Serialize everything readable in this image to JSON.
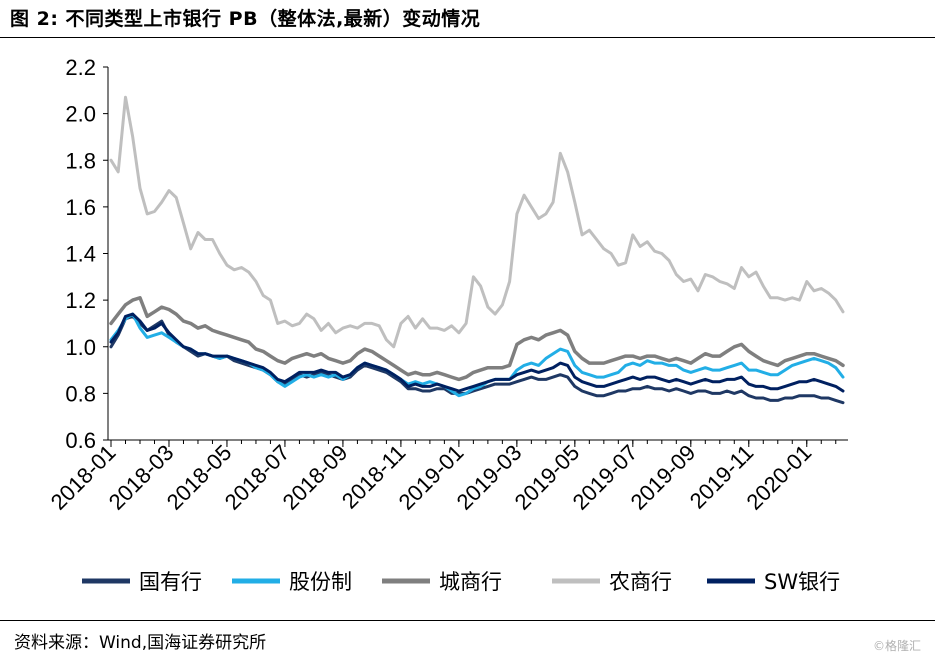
{
  "header": {
    "title": "图 2:  不同类型上市银行 PB（整体法,最新）变动情况"
  },
  "footer": {
    "source": "资料来源：Wind,国海证券研究所",
    "watermark": "©格隆汇"
  },
  "chart_data": {
    "type": "line",
    "title": "图 2:  不同类型上市银行 PB（整体法,最新）变动情况",
    "xlabel": "",
    "ylabel": "",
    "ylim": [
      0.6,
      2.2
    ],
    "yticks": [
      "0.6",
      "0.8",
      "1.0",
      "1.2",
      "1.4",
      "1.6",
      "1.8",
      "2.0",
      "2.2"
    ],
    "xticks": [
      "2018-01",
      "2018-03",
      "2018-05",
      "2018-07",
      "2018-09",
      "2018-11",
      "2019-01",
      "2019-03",
      "2019-05",
      "2019-07",
      "2019-09",
      "2019-11",
      "2020-01"
    ],
    "grid": false,
    "legend_position": "bottom",
    "x": [
      "2018-01",
      "2018-01",
      "2018-01",
      "2018-01",
      "2018-02",
      "2018-02",
      "2018-02",
      "2018-02",
      "2018-03",
      "2018-03",
      "2018-03",
      "2018-03",
      "2018-04",
      "2018-04",
      "2018-04",
      "2018-04",
      "2018-05",
      "2018-05",
      "2018-05",
      "2018-05",
      "2018-06",
      "2018-06",
      "2018-06",
      "2018-06",
      "2018-07",
      "2018-07",
      "2018-07",
      "2018-07",
      "2018-08",
      "2018-08",
      "2018-08",
      "2018-08",
      "2018-09",
      "2018-09",
      "2018-09",
      "2018-09",
      "2018-10",
      "2018-10",
      "2018-10",
      "2018-10",
      "2018-11",
      "2018-11",
      "2018-11",
      "2018-11",
      "2018-12",
      "2018-12",
      "2018-12",
      "2018-12",
      "2019-01",
      "2019-01",
      "2019-01",
      "2019-01",
      "2019-02",
      "2019-02",
      "2019-02",
      "2019-02",
      "2019-03",
      "2019-03",
      "2019-03",
      "2019-03",
      "2019-04",
      "2019-04",
      "2019-04",
      "2019-04",
      "2019-05",
      "2019-05",
      "2019-05",
      "2019-05",
      "2019-06",
      "2019-06",
      "2019-06",
      "2019-06",
      "2019-07",
      "2019-07",
      "2019-07",
      "2019-07",
      "2019-08",
      "2019-08",
      "2019-08",
      "2019-08",
      "2019-09",
      "2019-09",
      "2019-09",
      "2019-09",
      "2019-10",
      "2019-10",
      "2019-10",
      "2019-10",
      "2019-11",
      "2019-11",
      "2019-11",
      "2019-11",
      "2019-12",
      "2019-12",
      "2019-12",
      "2019-12",
      "2020-01",
      "2020-01",
      "2020-01",
      "2020-01",
      "2020-02",
      "2020-02"
    ],
    "series": [
      {
        "name": "国有行",
        "color": "#1f3864",
        "values": [
          1.0,
          1.05,
          1.12,
          1.13,
          1.1,
          1.07,
          1.09,
          1.11,
          1.05,
          1.02,
          1.0,
          0.98,
          0.96,
          0.97,
          0.96,
          0.95,
          0.96,
          0.94,
          0.93,
          0.92,
          0.91,
          0.9,
          0.88,
          0.85,
          0.84,
          0.86,
          0.88,
          0.87,
          0.88,
          0.89,
          0.88,
          0.87,
          0.86,
          0.87,
          0.9,
          0.92,
          0.91,
          0.9,
          0.89,
          0.87,
          0.85,
          0.82,
          0.82,
          0.81,
          0.81,
          0.82,
          0.82,
          0.8,
          0.8,
          0.8,
          0.81,
          0.82,
          0.83,
          0.84,
          0.84,
          0.84,
          0.85,
          0.86,
          0.87,
          0.86,
          0.86,
          0.87,
          0.88,
          0.87,
          0.83,
          0.81,
          0.8,
          0.79,
          0.79,
          0.8,
          0.81,
          0.81,
          0.82,
          0.82,
          0.83,
          0.82,
          0.82,
          0.81,
          0.82,
          0.81,
          0.8,
          0.81,
          0.81,
          0.8,
          0.8,
          0.81,
          0.8,
          0.81,
          0.79,
          0.78,
          0.78,
          0.77,
          0.77,
          0.78,
          0.78,
          0.79,
          0.79,
          0.79,
          0.78,
          0.78,
          0.77,
          0.76
        ]
      },
      {
        "name": "股份制",
        "color": "#22aee6",
        "values": [
          1.03,
          1.07,
          1.12,
          1.14,
          1.08,
          1.04,
          1.05,
          1.06,
          1.04,
          1.02,
          1.0,
          0.99,
          0.97,
          0.97,
          0.96,
          0.95,
          0.96,
          0.95,
          0.94,
          0.93,
          0.91,
          0.9,
          0.88,
          0.85,
          0.83,
          0.85,
          0.87,
          0.88,
          0.87,
          0.88,
          0.87,
          0.88,
          0.86,
          0.88,
          0.91,
          0.93,
          0.92,
          0.91,
          0.9,
          0.88,
          0.86,
          0.84,
          0.85,
          0.84,
          0.85,
          0.84,
          0.83,
          0.81,
          0.79,
          0.8,
          0.82,
          0.83,
          0.85,
          0.86,
          0.86,
          0.86,
          0.9,
          0.92,
          0.93,
          0.92,
          0.95,
          0.97,
          0.99,
          0.98,
          0.92,
          0.89,
          0.88,
          0.87,
          0.87,
          0.88,
          0.89,
          0.92,
          0.93,
          0.92,
          0.94,
          0.93,
          0.93,
          0.92,
          0.92,
          0.9,
          0.89,
          0.9,
          0.91,
          0.9,
          0.9,
          0.91,
          0.92,
          0.93,
          0.9,
          0.9,
          0.89,
          0.88,
          0.88,
          0.9,
          0.92,
          0.93,
          0.94,
          0.95,
          0.94,
          0.93,
          0.91,
          0.87
        ]
      },
      {
        "name": "城商行",
        "color": "#7f7f7f",
        "values": [
          1.1,
          1.14,
          1.18,
          1.2,
          1.21,
          1.13,
          1.15,
          1.17,
          1.16,
          1.14,
          1.11,
          1.1,
          1.08,
          1.09,
          1.07,
          1.06,
          1.05,
          1.04,
          1.03,
          1.02,
          0.99,
          0.98,
          0.96,
          0.94,
          0.93,
          0.95,
          0.96,
          0.97,
          0.96,
          0.97,
          0.95,
          0.94,
          0.93,
          0.94,
          0.97,
          0.99,
          0.98,
          0.96,
          0.94,
          0.92,
          0.9,
          0.88,
          0.89,
          0.88,
          0.88,
          0.89,
          0.88,
          0.87,
          0.86,
          0.87,
          0.89,
          0.9,
          0.91,
          0.91,
          0.91,
          0.92,
          1.01,
          1.03,
          1.04,
          1.03,
          1.05,
          1.06,
          1.07,
          1.05,
          0.98,
          0.95,
          0.93,
          0.93,
          0.93,
          0.94,
          0.95,
          0.96,
          0.96,
          0.95,
          0.96,
          0.96,
          0.95,
          0.94,
          0.95,
          0.94,
          0.93,
          0.95,
          0.97,
          0.96,
          0.96,
          0.98,
          1.0,
          1.01,
          0.98,
          0.96,
          0.94,
          0.93,
          0.92,
          0.94,
          0.95,
          0.96,
          0.97,
          0.97,
          0.96,
          0.95,
          0.94,
          0.92
        ]
      },
      {
        "name": "农商行",
        "color": "#bfbfbf",
        "values": [
          1.8,
          1.75,
          2.07,
          1.9,
          1.68,
          1.57,
          1.58,
          1.62,
          1.67,
          1.64,
          1.53,
          1.42,
          1.49,
          1.46,
          1.46,
          1.4,
          1.35,
          1.33,
          1.34,
          1.32,
          1.28,
          1.22,
          1.2,
          1.1,
          1.11,
          1.09,
          1.1,
          1.14,
          1.12,
          1.07,
          1.1,
          1.06,
          1.08,
          1.09,
          1.08,
          1.1,
          1.1,
          1.09,
          1.03,
          1.0,
          1.1,
          1.13,
          1.08,
          1.12,
          1.08,
          1.08,
          1.07,
          1.09,
          1.06,
          1.1,
          1.3,
          1.26,
          1.17,
          1.14,
          1.18,
          1.28,
          1.57,
          1.65,
          1.6,
          1.55,
          1.57,
          1.62,
          1.83,
          1.75,
          1.62,
          1.48,
          1.5,
          1.46,
          1.42,
          1.4,
          1.35,
          1.36,
          1.48,
          1.43,
          1.45,
          1.41,
          1.4,
          1.37,
          1.31,
          1.28,
          1.29,
          1.24,
          1.31,
          1.3,
          1.28,
          1.27,
          1.25,
          1.34,
          1.3,
          1.32,
          1.26,
          1.21,
          1.21,
          1.2,
          1.21,
          1.2,
          1.28,
          1.24,
          1.25,
          1.23,
          1.2,
          1.15
        ]
      },
      {
        "name": "SW银行",
        "color": "#002060",
        "values": [
          1.02,
          1.06,
          1.13,
          1.14,
          1.11,
          1.07,
          1.08,
          1.1,
          1.06,
          1.03,
          1.0,
          0.99,
          0.97,
          0.97,
          0.96,
          0.96,
          0.96,
          0.95,
          0.94,
          0.93,
          0.92,
          0.91,
          0.89,
          0.86,
          0.85,
          0.87,
          0.89,
          0.89,
          0.89,
          0.9,
          0.89,
          0.89,
          0.87,
          0.88,
          0.91,
          0.93,
          0.92,
          0.91,
          0.9,
          0.88,
          0.86,
          0.83,
          0.84,
          0.83,
          0.83,
          0.84,
          0.83,
          0.82,
          0.81,
          0.82,
          0.83,
          0.84,
          0.85,
          0.86,
          0.86,
          0.86,
          0.88,
          0.89,
          0.9,
          0.89,
          0.9,
          0.91,
          0.93,
          0.92,
          0.87,
          0.85,
          0.84,
          0.83,
          0.83,
          0.84,
          0.85,
          0.86,
          0.87,
          0.86,
          0.87,
          0.87,
          0.86,
          0.85,
          0.86,
          0.85,
          0.84,
          0.85,
          0.86,
          0.85,
          0.85,
          0.86,
          0.86,
          0.87,
          0.84,
          0.83,
          0.83,
          0.82,
          0.82,
          0.83,
          0.84,
          0.85,
          0.85,
          0.86,
          0.85,
          0.84,
          0.83,
          0.81
        ]
      }
    ]
  }
}
